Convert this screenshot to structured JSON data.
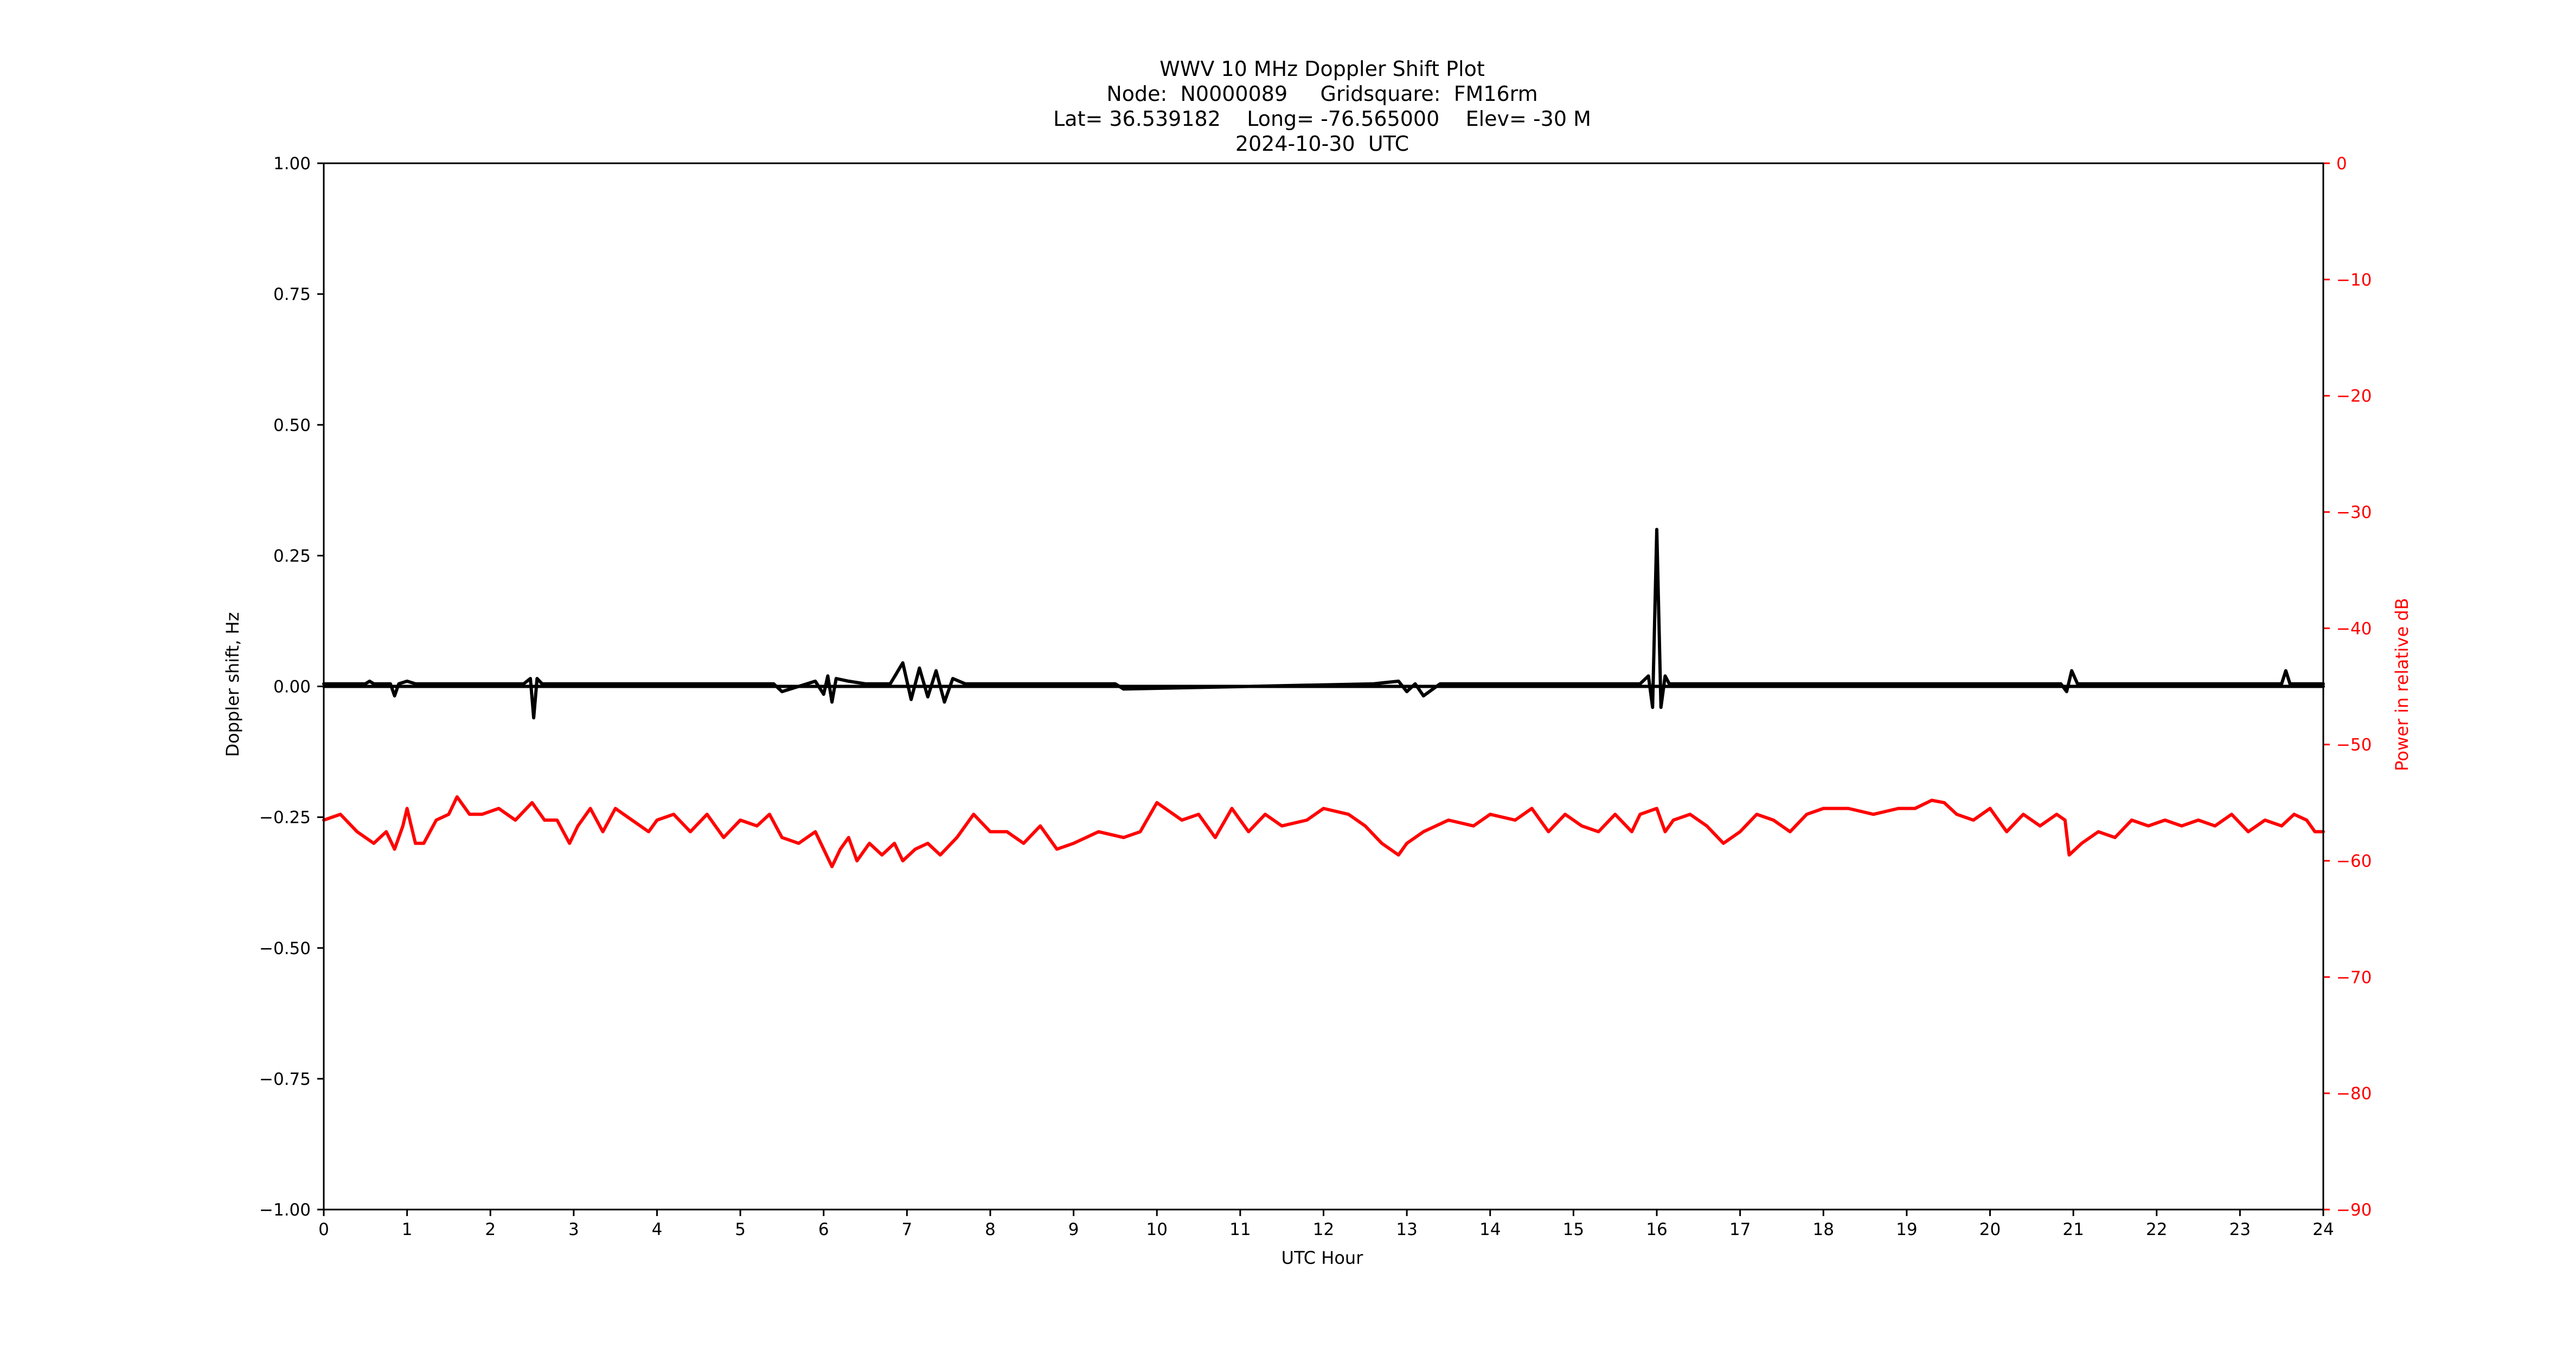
{
  "chart_data": {
    "type": "line",
    "title_lines": [
      "WWV 10 MHz Doppler Shift Plot",
      "Node:  N0000089     Gridsquare:  FM16rm",
      "Lat= 36.539182    Long= -76.565000    Elev= -30 M",
      "2024-10-30  UTC"
    ],
    "xlabel": "UTC Hour",
    "ylabel_left": "Doppler shift, Hz",
    "ylabel_right": "Power in relative dB",
    "xlim": [
      0,
      24
    ],
    "ylim_left": [
      -1.0,
      1.0
    ],
    "ylim_right": [
      -90,
      0
    ],
    "x_ticks": [
      "0",
      "1",
      "2",
      "3",
      "4",
      "5",
      "6",
      "7",
      "8",
      "9",
      "10",
      "11",
      "12",
      "13",
      "14",
      "15",
      "16",
      "17",
      "18",
      "19",
      "20",
      "21",
      "22",
      "23",
      "24"
    ],
    "y_ticks_left": [
      "1.00",
      "0.75",
      "0.50",
      "0.25",
      "0.00",
      "−0.25",
      "−0.50",
      "−0.75",
      "−1.00"
    ],
    "y_ticks_right": [
      "0",
      "−10",
      "−20",
      "−30",
      "−40",
      "−50",
      "−60",
      "−70",
      "−80",
      "−90"
    ],
    "grid": false,
    "colors": {
      "doppler": "#000000",
      "power": "#ff0000",
      "right_axis": "#ff0000"
    },
    "series": [
      {
        "axis": "left",
        "color": "#000000",
        "x": [
          0,
          0.5,
          0.55,
          0.6,
          0.8,
          0.85,
          0.9,
          1.0,
          1.1,
          2.4,
          2.48,
          2.52,
          2.56,
          2.62,
          2.7,
          5.4,
          5.5,
          5.9,
          6.0,
          6.05,
          6.1,
          6.15,
          6.3,
          6.5,
          6.8,
          6.95,
          7.05,
          7.15,
          7.25,
          7.35,
          7.45,
          7.55,
          7.7,
          9.5,
          9.6,
          12.6,
          12.9,
          13.0,
          13.1,
          13.2,
          13.4,
          15.8,
          15.9,
          15.95,
          16.0,
          16.05,
          16.1,
          16.15,
          16.2,
          16.3,
          17.8,
          20.85,
          20.92,
          20.98,
          21.05,
          23.5,
          23.55,
          23.6,
          23.65,
          24
        ],
        "values": [
          0.005,
          0.005,
          0.01,
          0.005,
          0.005,
          -0.018,
          0.005,
          0.01,
          0.005,
          0.005,
          0.015,
          -0.06,
          0.015,
          0.005,
          0.005,
          0.005,
          -0.01,
          0.01,
          -0.015,
          0.02,
          -0.03,
          0.015,
          0.01,
          0.005,
          0.005,
          0.045,
          -0.025,
          0.035,
          -0.02,
          0.03,
          -0.03,
          0.015,
          0.005,
          0.005,
          -0.005,
          0.005,
          0.01,
          -0.01,
          0.005,
          -0.018,
          0.005,
          0.005,
          0.02,
          -0.04,
          0.3,
          -0.04,
          0.02,
          0.005,
          0.005,
          0.005,
          0.005,
          0.005,
          -0.01,
          0.03,
          0.005,
          0.005,
          0.03,
          0.005,
          0.005,
          0.005
        ]
      },
      {
        "axis": "left",
        "color": "#000000",
        "x": [
          0,
          24
        ],
        "values": [
          0.0,
          0.0
        ]
      },
      {
        "axis": "right",
        "color": "#ff0000",
        "x": [
          0,
          0.2,
          0.4,
          0.5,
          0.6,
          0.75,
          0.85,
          0.95,
          1.0,
          1.1,
          1.2,
          1.35,
          1.5,
          1.6,
          1.75,
          1.9,
          2.1,
          2.3,
          2.5,
          2.65,
          2.8,
          2.95,
          3.05,
          3.2,
          3.35,
          3.5,
          3.7,
          3.9,
          4.0,
          4.2,
          4.4,
          4.6,
          4.8,
          5.0,
          5.2,
          5.35,
          5.5,
          5.7,
          5.9,
          6.1,
          6.2,
          6.3,
          6.4,
          6.55,
          6.7,
          6.85,
          6.95,
          7.1,
          7.25,
          7.4,
          7.6,
          7.8,
          8.0,
          8.2,
          8.4,
          8.6,
          8.8,
          9.0,
          9.3,
          9.6,
          9.8,
          10.0,
          10.3,
          10.5,
          10.7,
          10.9,
          11.1,
          11.3,
          11.5,
          11.8,
          12.0,
          12.3,
          12.5,
          12.7,
          12.9,
          13.0,
          13.2,
          13.5,
          13.8,
          14.0,
          14.3,
          14.5,
          14.7,
          14.9,
          15.1,
          15.3,
          15.5,
          15.7,
          15.8,
          16.0,
          16.1,
          16.2,
          16.4,
          16.6,
          16.8,
          17.0,
          17.2,
          17.4,
          17.6,
          17.8,
          18.0,
          18.3,
          18.6,
          18.9,
          19.1,
          19.3,
          19.45,
          19.6,
          19.8,
          20.0,
          20.2,
          20.4,
          20.6,
          20.8,
          20.9,
          20.95,
          21.1,
          21.3,
          21.5,
          21.7,
          21.9,
          22.1,
          22.3,
          22.5,
          22.7,
          22.9,
          23.1,
          23.3,
          23.5,
          23.65,
          23.8,
          23.9,
          24
        ],
        "values": [
          -56.5,
          -56,
          -57.5,
          -58,
          -58.5,
          -57.5,
          -59,
          -57,
          -55.5,
          -58.5,
          -58.5,
          -56.5,
          -56,
          -54.5,
          -56,
          -56,
          -55.5,
          -56.5,
          -55,
          -56.5,
          -56.5,
          -58.5,
          -57,
          -55.5,
          -57.5,
          -55.5,
          -56.5,
          -57.5,
          -56.5,
          -56,
          -57.5,
          -56,
          -58,
          -56.5,
          -57,
          -56,
          -58,
          -58.5,
          -57.5,
          -60.5,
          -59,
          -58,
          -60,
          -58.5,
          -59.5,
          -58.5,
          -60,
          -59,
          -58.5,
          -59.5,
          -58,
          -56,
          -57.5,
          -57.5,
          -58.5,
          -57,
          -59,
          -58.5,
          -57.5,
          -58,
          -57.5,
          -55,
          -56.5,
          -56,
          -58,
          -55.5,
          -57.5,
          -56,
          -57,
          -56.5,
          -55.5,
          -56,
          -57,
          -58.5,
          -59.5,
          -58.5,
          -57.5,
          -56.5,
          -57,
          -56,
          -56.5,
          -55.5,
          -57.5,
          -56,
          -57,
          -57.5,
          -56,
          -57.5,
          -56,
          -55.5,
          -57.5,
          -56.5,
          -56,
          -57,
          -58.5,
          -57.5,
          -56,
          -56.5,
          -57.5,
          -56,
          -55.5,
          -55.5,
          -56,
          -55.5,
          -55.5,
          -54.8,
          -55,
          -56,
          -56.5,
          -55.5,
          -57.5,
          -56,
          -57,
          -56,
          -56.5,
          -59.5,
          -58.5,
          -57.5,
          -58,
          -56.5,
          -57,
          -56.5,
          -57,
          -56.5,
          -57,
          -56,
          -57.5,
          -56.5,
          -57,
          -56,
          -56.5,
          -57.5,
          -57.5
        ]
      }
    ]
  }
}
